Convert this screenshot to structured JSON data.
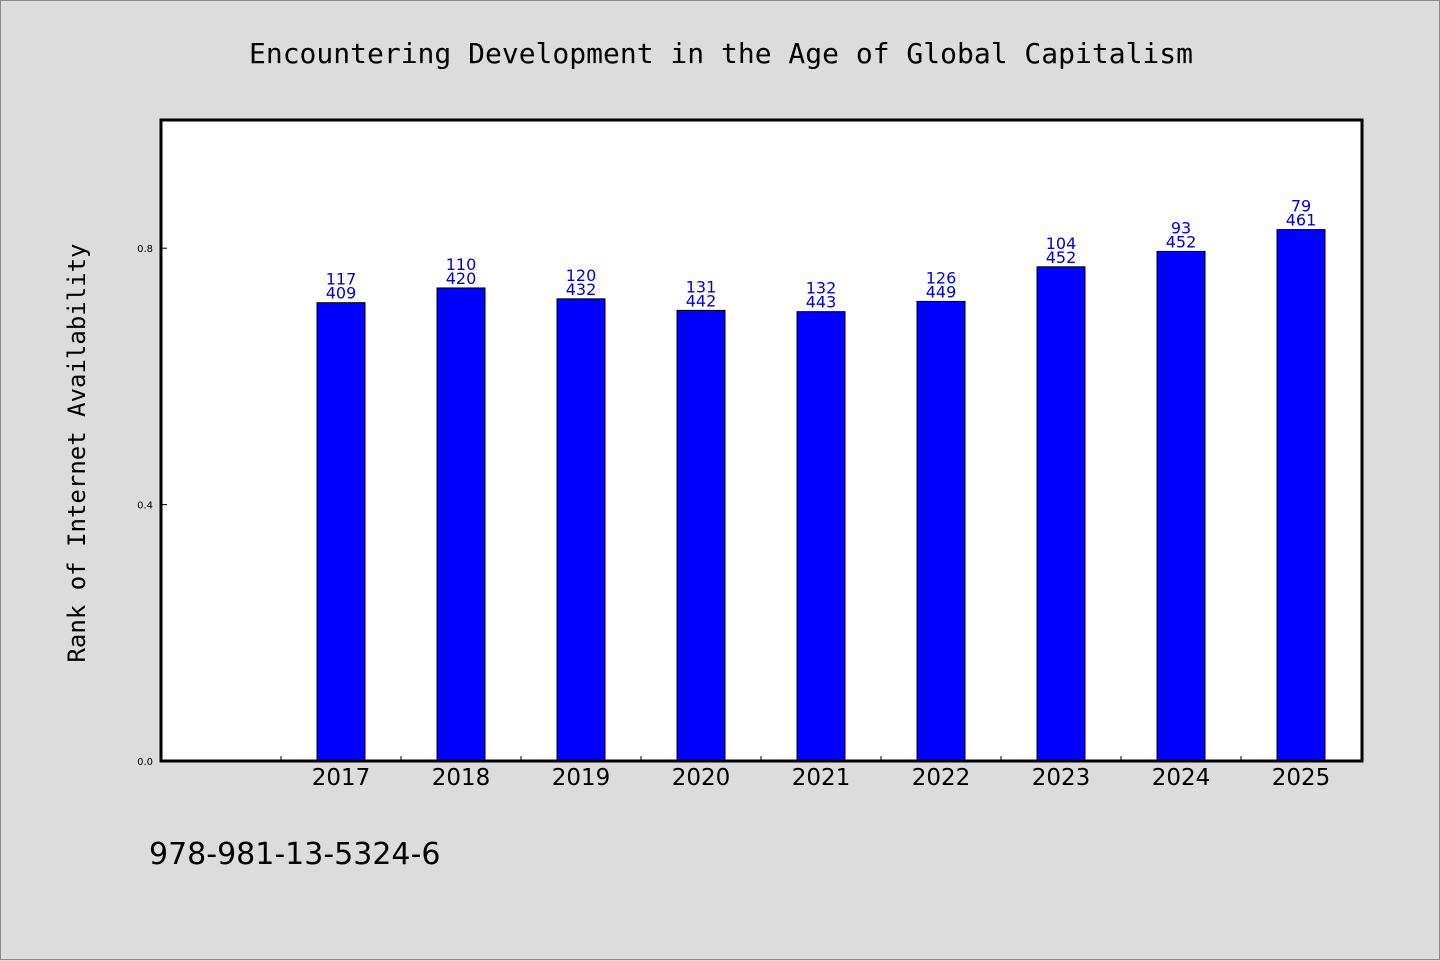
{
  "chart_data": {
    "type": "bar",
    "title": "Encountering Development in the Age of Global Capitalism",
    "xlabel": "",
    "ylabel": "Rank of Internet Availability",
    "categories": [
      "2017",
      "2018",
      "2019",
      "2020",
      "2021",
      "2022",
      "2023",
      "2024",
      "2025"
    ],
    "values": [
      0.715,
      0.738,
      0.721,
      0.703,
      0.701,
      0.717,
      0.771,
      0.795,
      0.829
    ],
    "label_top": [
      "117",
      "110",
      "120",
      "131",
      "132",
      "126",
      "104",
      "93",
      "79"
    ],
    "label_bottom": [
      "409",
      "420",
      "432",
      "442",
      "443",
      "449",
      "452",
      "452",
      "461"
    ],
    "ylim": [
      0,
      1.0
    ],
    "yticks": [
      "0.0",
      "0.4",
      "0.8"
    ],
    "ytick_values": [
      0.0,
      0.4,
      0.8
    ],
    "grid": false,
    "bar_color": "#0000ff",
    "label_color": "#0000cc",
    "footer": "978-981-13-5324-6"
  }
}
